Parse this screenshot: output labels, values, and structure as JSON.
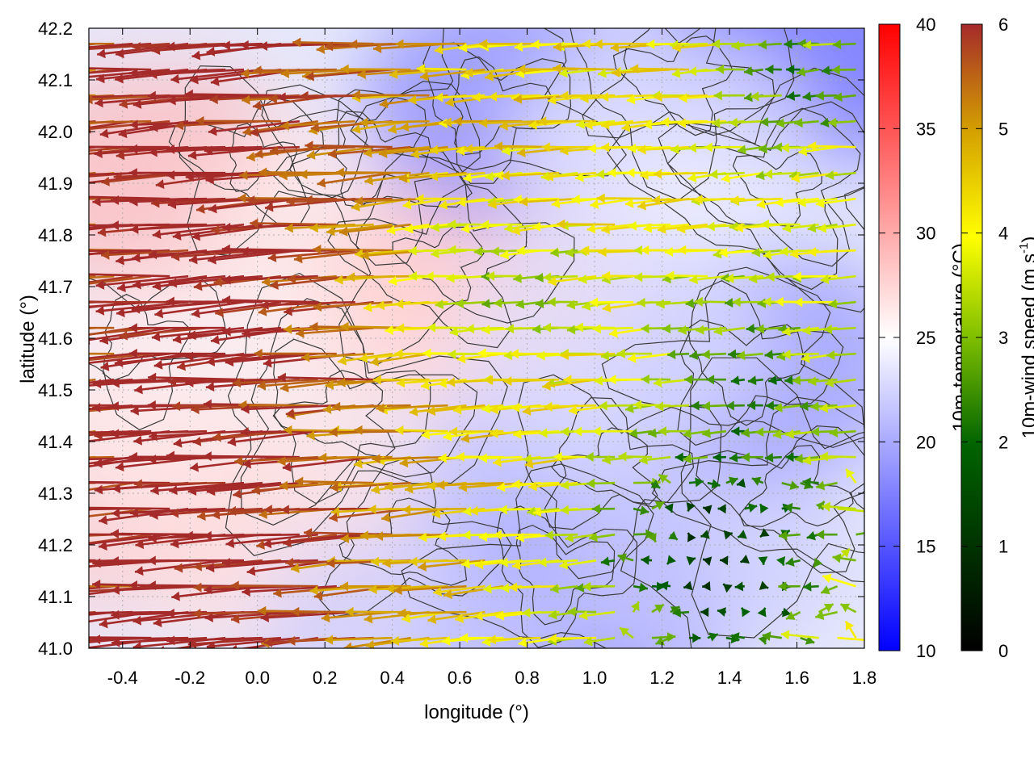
{
  "chart_data": {
    "type": "vector-field",
    "xlabel": "longitude (°)",
    "ylabel": "latitude (°)",
    "xlim": [
      -0.5,
      1.8
    ],
    "ylim": [
      41.0,
      42.2
    ],
    "x_ticks": [
      "-0.4",
      "-0.2",
      "0.0",
      "0.2",
      "0.4",
      "0.6",
      "0.8",
      "1.0",
      "1.2",
      "1.4",
      "1.6",
      "1.8"
    ],
    "y_ticks": [
      "41.0",
      "41.1",
      "41.2",
      "41.3",
      "41.4",
      "41.5",
      "41.6",
      "41.7",
      "41.8",
      "41.9",
      "42.0",
      "42.1",
      "42.2"
    ],
    "grid": true,
    "temperature_colorbar": {
      "label": "10m-temperature (°C)",
      "range": [
        10,
        40
      ],
      "ticks": [
        "10",
        "15",
        "20",
        "25",
        "30",
        "35",
        "40"
      ],
      "colors": [
        "#0000ff",
        "#ffffff",
        "#ff0000"
      ]
    },
    "wind_colorbar": {
      "label": "10m-wind speed (m s",
      "label_sup": "-1",
      "label_end": ")",
      "range": [
        0,
        6
      ],
      "ticks": [
        "0",
        "1",
        "2",
        "3",
        "4",
        "5",
        "6"
      ],
      "colors": [
        "#000000",
        "#006400",
        "#7fbf00",
        "#ffff00",
        "#d4a000",
        "#c06020",
        "#a52a2a"
      ]
    },
    "temperature_field": [
      {
        "lon": -0.45,
        "lat": 41.3,
        "temp": 28
      },
      {
        "lon": -0.3,
        "lat": 41.9,
        "temp": 29
      },
      {
        "lon": -0.2,
        "lat": 41.5,
        "temp": 26
      },
      {
        "lon": 0.1,
        "lat": 41.2,
        "temp": 27
      },
      {
        "lon": 0.3,
        "lat": 41.8,
        "temp": 26
      },
      {
        "lon": 0.55,
        "lat": 41.65,
        "temp": 27
      },
      {
        "lon": 0.7,
        "lat": 41.75,
        "temp": 28
      },
      {
        "lon": 0.9,
        "lat": 41.3,
        "temp": 21
      },
      {
        "lon": 0.95,
        "lat": 41.05,
        "temp": 18
      },
      {
        "lon": 1.3,
        "lat": 41.2,
        "temp": 22
      },
      {
        "lon": 1.5,
        "lat": 41.55,
        "temp": 19
      },
      {
        "lon": 1.6,
        "lat": 42.15,
        "temp": 16
      },
      {
        "lon": 0.75,
        "lat": 42.05,
        "temp": 18
      },
      {
        "lon": 1.2,
        "lat": 41.95,
        "temp": 24
      },
      {
        "lon": 0.45,
        "lat": 41.0,
        "temp": 22
      },
      {
        "lon": 1.05,
        "lat": 41.6,
        "temp": 23
      }
    ]
  }
}
